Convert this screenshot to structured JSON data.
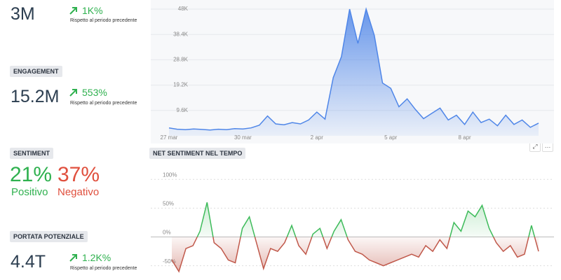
{
  "metrics": [
    {
      "value": "3M",
      "change": "1K%",
      "note": "Rispetto al periodo precedente"
    },
    {
      "label": "ENGAGEMENT",
      "value": "15.2M",
      "change": "553%",
      "note": "Rispetto al periodo precedente"
    },
    {
      "label": "PORTATA POTENZIALE",
      "value": "4.4T",
      "change": "1.2K%",
      "note": "Rispetto al periodo precedente"
    }
  ],
  "sentiment": {
    "label": "SENTIMENT",
    "positive_value": "21%",
    "positive_label": "Positivo",
    "negative_value": "37%",
    "negative_label": "Negativo"
  },
  "chart_data": [
    {
      "type": "area",
      "color": "#4f86e8",
      "categories": [
        "27 mar",
        null,
        null,
        null,
        null,
        null,
        null,
        null,
        null,
        "30 mar",
        null,
        null,
        null,
        null,
        null,
        null,
        null,
        null,
        "2 apr",
        null,
        null,
        null,
        null,
        null,
        null,
        null,
        null,
        "5 apr",
        null,
        null,
        null,
        null,
        null,
        null,
        null,
        null,
        "8 apr",
        null,
        null,
        null,
        null,
        null,
        null,
        null,
        null,
        null
      ],
      "values": [
        3000,
        2500,
        2300,
        2600,
        2400,
        2200,
        2500,
        2300,
        2700,
        2600,
        3000,
        4000,
        7500,
        4500,
        4200,
        5000,
        4500,
        6000,
        9000,
        6300,
        22000,
        30000,
        48000,
        35000,
        48000,
        38000,
        20000,
        18000,
        11000,
        14000,
        10000,
        6500,
        8500,
        10500,
        6000,
        7800,
        4300,
        9000,
        5000,
        6300,
        3800,
        7800,
        4300,
        6000,
        3200,
        4800
      ],
      "ylim": [
        0,
        48000
      ],
      "yticks": [
        {
          "value": 9600,
          "label": "9.6K"
        },
        {
          "value": 19200,
          "label": "19.2K"
        },
        {
          "value": 28800,
          "label": "28.8K"
        },
        {
          "value": 38400,
          "label": "38.4K"
        },
        {
          "value": 48000,
          "label": "48K"
        }
      ],
      "grid": true
    },
    {
      "type": "line",
      "title": "NET SENTIMENT NEL TEMPO",
      "positive_color": "#3dbb5a",
      "negative_color": "#c0584a",
      "values": [
        -40,
        -60,
        -20,
        -15,
        10,
        60,
        -10,
        -20,
        -40,
        -45,
        15,
        35,
        -10,
        -55,
        -20,
        -25,
        -10,
        20,
        -15,
        -30,
        5,
        15,
        -20,
        10,
        30,
        -5,
        -25,
        -30,
        -40,
        -45,
        -50,
        -45,
        -40,
        -35,
        -30,
        -35,
        -15,
        -25,
        -5,
        -20,
        25,
        10,
        45,
        35,
        55,
        15,
        -10,
        -25,
        -15,
        -35,
        -30,
        20,
        -25
      ],
      "ylim": [
        -65,
        110
      ],
      "yticks": [
        {
          "value": -50,
          "label": "-50%"
        },
        {
          "value": 0,
          "label": "0%"
        },
        {
          "value": 50,
          "label": "50%"
        },
        {
          "value": 100,
          "label": "100%"
        }
      ],
      "grid": true
    }
  ]
}
